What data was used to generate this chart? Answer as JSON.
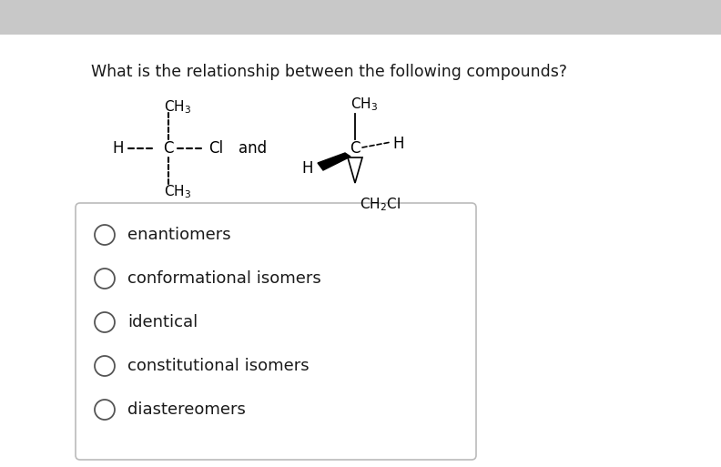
{
  "title": "What is the relationship between the following compounds?",
  "title_fontsize": 12.5,
  "background_color": "#ebebeb",
  "banner_color": "#c8c8c8",
  "main_bg": "#ffffff",
  "question_color": "#1a1a1a",
  "options": [
    "enantiomers",
    "conformational isomers",
    "identical",
    "constitutional isomers",
    "diastereomers"
  ],
  "option_fontsize": 13,
  "box_color": "#bbbbbb",
  "circle_color": "#555555",
  "and_text": "and"
}
